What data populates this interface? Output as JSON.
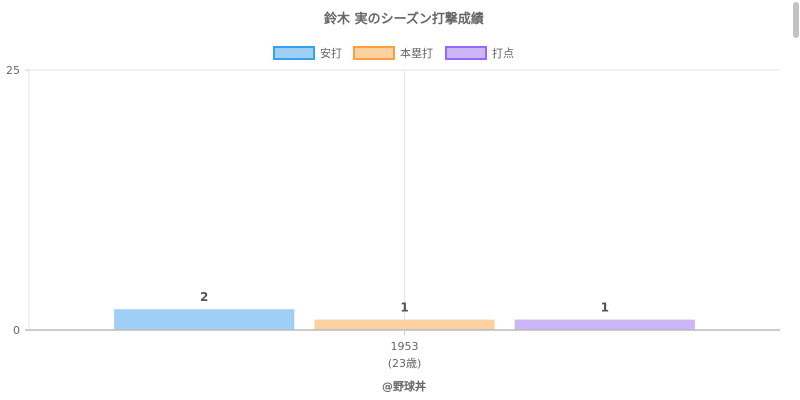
{
  "chart_data": {
    "type": "bar",
    "title": "鈴木 実のシーズン打撃成績",
    "categories": [
      "1953"
    ],
    "category_sublabels": [
      "(23歳)"
    ],
    "series": [
      {
        "name": "安打",
        "values": [
          2
        ],
        "color": "#9fcff5",
        "border": "#36a2eb"
      },
      {
        "name": "本塁打",
        "values": [
          1
        ],
        "color": "#fdd0a2",
        "border": "#ff9f40"
      },
      {
        "name": "打点",
        "values": [
          1
        ],
        "color": "#cdb6f8",
        "border": "#9966ff"
      }
    ],
    "ylim": [
      0,
      25
    ],
    "y_ticks": [
      "0",
      "25"
    ],
    "grid": true,
    "legend_position": "top"
  },
  "credit": "@野球丼"
}
